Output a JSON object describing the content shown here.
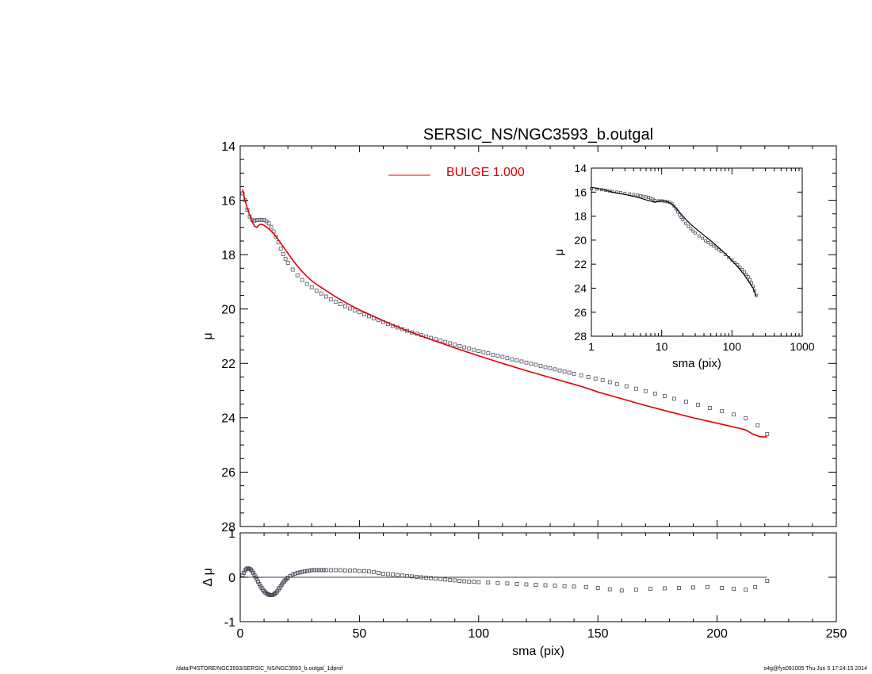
{
  "title": "SERSIC_NS/NGC3593_b.outgal",
  "legend": {
    "label": "BULGE  1.000",
    "color": "#e00000"
  },
  "footer": {
    "path": "/data/P4STORE/NGC3593/SERSIC_NS/NGC3593_b.outgal_1dprof",
    "stamp": "s4g@fys091005  Thu Jun  5 17:24:15 2014"
  },
  "chart_data": [
    {
      "id": "main",
      "type": "scatter",
      "title": "SERSIC_NS/NGC3593_b.outgal",
      "xlabel": "",
      "ylabel": "μ",
      "xlim": [
        0,
        250
      ],
      "ylim": [
        28,
        14
      ],
      "yticks": [
        14,
        16,
        18,
        20,
        22,
        24,
        26,
        28
      ],
      "series": [
        {
          "name": "",
          "kind": "points",
          "color": "#505060",
          "x": [
            1,
            2,
            3,
            4,
            5,
            6,
            7,
            8,
            9,
            10,
            11,
            12,
            13,
            14,
            15,
            16,
            17,
            18,
            19,
            20,
            22,
            24,
            26,
            28,
            30,
            32,
            34,
            36,
            38,
            40,
            42,
            44,
            46,
            48,
            50,
            52,
            54,
            56,
            58,
            60,
            62,
            64,
            66,
            68,
            70,
            72,
            74,
            76,
            78,
            80,
            82,
            84,
            86,
            88,
            90,
            92,
            94,
            96,
            98,
            100,
            102,
            104,
            106,
            108,
            110,
            112,
            114,
            116,
            118,
            120,
            122,
            124,
            126,
            128,
            130,
            132,
            134,
            136,
            138,
            140,
            143,
            146,
            149,
            152,
            155,
            158,
            162,
            166,
            170,
            174,
            178,
            182,
            187,
            192,
            197,
            202,
            207,
            212,
            217,
            221
          ],
          "y": [
            15.75,
            16.0,
            16.35,
            16.6,
            16.72,
            16.75,
            16.73,
            16.72,
            16.72,
            16.73,
            16.77,
            16.85,
            16.98,
            17.15,
            17.35,
            17.55,
            17.78,
            17.98,
            18.15,
            18.3,
            18.55,
            18.76,
            18.93,
            19.08,
            19.2,
            19.32,
            19.43,
            19.54,
            19.64,
            19.73,
            19.82,
            19.9,
            19.98,
            20.05,
            20.12,
            20.2,
            20.27,
            20.34,
            20.41,
            20.48,
            20.55,
            20.62,
            20.68,
            20.74,
            20.8,
            20.86,
            20.91,
            20.96,
            21.01,
            21.06,
            21.11,
            21.16,
            21.21,
            21.26,
            21.31,
            21.36,
            21.41,
            21.45,
            21.5,
            21.54,
            21.59,
            21.63,
            21.68,
            21.72,
            21.76,
            21.81,
            21.85,
            21.89,
            21.93,
            21.97,
            22.01,
            22.05,
            22.1,
            22.14,
            22.18,
            22.22,
            22.26,
            22.3,
            22.34,
            22.38,
            22.44,
            22.5,
            22.56,
            22.62,
            22.69,
            22.76,
            22.84,
            22.93,
            23.02,
            23.11,
            23.2,
            23.3,
            23.41,
            23.52,
            23.64,
            23.76,
            23.88,
            24.02,
            24.28,
            24.6
          ]
        },
        {
          "name": "BULGE  1.000",
          "kind": "line",
          "color": "#e00000",
          "x": [
            1,
            2,
            3,
            4,
            5,
            6,
            7,
            8,
            9,
            10,
            12,
            14,
            16,
            18,
            20,
            22,
            24,
            26,
            28,
            30,
            33,
            36,
            40,
            45,
            50,
            55,
            60,
            65,
            70,
            80,
            90,
            100,
            110,
            120,
            130,
            140,
            145,
            150,
            160,
            170,
            180,
            190,
            200,
            210,
            212,
            215,
            218,
            221
          ],
          "y": [
            15.6,
            16.0,
            16.3,
            16.55,
            16.78,
            16.95,
            17.0,
            16.9,
            16.88,
            16.92,
            17.05,
            17.22,
            17.45,
            17.7,
            17.95,
            18.2,
            18.42,
            18.62,
            18.8,
            18.96,
            19.15,
            19.32,
            19.55,
            19.8,
            20.03,
            20.23,
            20.43,
            20.62,
            20.8,
            21.12,
            21.43,
            21.72,
            22.0,
            22.27,
            22.52,
            22.77,
            22.9,
            23.05,
            23.3,
            23.55,
            23.78,
            24.0,
            24.2,
            24.4,
            24.45,
            24.6,
            24.7,
            24.7
          ]
        }
      ]
    },
    {
      "id": "residual",
      "type": "scatter",
      "xlabel": "sma (pix)",
      "ylabel": "Δ μ",
      "xlim": [
        0,
        250
      ],
      "ylim": [
        -1,
        1
      ],
      "xticks": [
        0,
        50,
        100,
        150,
        200,
        250
      ],
      "yticks": [
        -1,
        0,
        1
      ],
      "zero_line": true,
      "series": [
        {
          "name": "",
          "kind": "points",
          "color": "#404050",
          "x": [
            1,
            1.5,
            2,
            2.5,
            3,
            3.5,
            4,
            4.5,
            5,
            5.5,
            6,
            6.5,
            7,
            7.5,
            8,
            8.5,
            9,
            9.5,
            10,
            10.5,
            11,
            11.5,
            12,
            12.5,
            13,
            13.5,
            14,
            14.5,
            15,
            15.5,
            16,
            16.5,
            17,
            17.5,
            18,
            18.5,
            19,
            19.5,
            20,
            21,
            22,
            23,
            24,
            25,
            26,
            27,
            28,
            29,
            30,
            31,
            32,
            33,
            34,
            35,
            36,
            38,
            40,
            42,
            44,
            46,
            48,
            50,
            52,
            54,
            56,
            58,
            60,
            62,
            64,
            66,
            68,
            70,
            72,
            74,
            76,
            78,
            80,
            82,
            84,
            86,
            88,
            90,
            92,
            94,
            96,
            98,
            100,
            104,
            108,
            112,
            116,
            120,
            124,
            128,
            132,
            136,
            140,
            145,
            150,
            155,
            160,
            166,
            172,
            178,
            184,
            190,
            196,
            202,
            207,
            212,
            216,
            221
          ],
          "y": [
            0.05,
            0.1,
            0.15,
            0.18,
            0.2,
            0.2,
            0.19,
            0.17,
            0.14,
            0.1,
            0.05,
            0.0,
            -0.05,
            -0.1,
            -0.15,
            -0.2,
            -0.24,
            -0.28,
            -0.31,
            -0.34,
            -0.36,
            -0.38,
            -0.39,
            -0.4,
            -0.4,
            -0.4,
            -0.39,
            -0.37,
            -0.35,
            -0.32,
            -0.28,
            -0.24,
            -0.2,
            -0.16,
            -0.12,
            -0.09,
            -0.06,
            -0.03,
            -0.01,
            0.03,
            0.06,
            0.08,
            0.1,
            0.11,
            0.12,
            0.13,
            0.14,
            0.15,
            0.16,
            0.16,
            0.16,
            0.16,
            0.16,
            0.16,
            0.16,
            0.16,
            0.16,
            0.16,
            0.15,
            0.15,
            0.15,
            0.14,
            0.14,
            0.13,
            0.12,
            0.1,
            0.08,
            0.07,
            0.06,
            0.05,
            0.04,
            0.03,
            0.02,
            0.01,
            0.0,
            -0.01,
            -0.02,
            -0.03,
            -0.04,
            -0.05,
            -0.06,
            -0.07,
            -0.08,
            -0.09,
            -0.1,
            -0.1,
            -0.11,
            -0.12,
            -0.13,
            -0.14,
            -0.15,
            -0.16,
            -0.17,
            -0.18,
            -0.19,
            -0.2,
            -0.21,
            -0.22,
            -0.24,
            -0.27,
            -0.3,
            -0.28,
            -0.26,
            -0.25,
            -0.24,
            -0.23,
            -0.22,
            -0.24,
            -0.26,
            -0.28,
            -0.22,
            -0.08
          ]
        }
      ]
    },
    {
      "id": "inset",
      "type": "scatter",
      "xlabel": "sma (pix)",
      "ylabel": "μ",
      "xscale": "log",
      "xlim": [
        1,
        1000
      ],
      "ylim": [
        28,
        14
      ],
      "xticks": [
        1,
        10,
        100,
        1000
      ],
      "yticks": [
        14,
        16,
        18,
        20,
        22,
        24,
        26,
        28
      ],
      "series": [
        {
          "name": "",
          "kind": "points",
          "color": "#505060",
          "x": [
            1,
            1.2,
            1.4,
            1.6,
            1.8,
            2,
            2.3,
            2.6,
            3,
            3.5,
            4,
            4.5,
            5,
            5.5,
            6,
            6.5,
            7,
            7.5,
            8,
            9,
            10,
            11,
            12,
            13,
            14,
            15,
            16,
            17,
            18,
            19,
            20,
            22,
            24,
            26,
            28,
            30,
            34,
            38,
            42,
            46,
            50,
            55,
            60,
            65,
            70,
            80,
            90,
            100,
            110,
            120,
            130,
            140,
            150,
            160,
            170,
            180,
            190,
            200,
            210,
            221
          ],
          "y": [
            15.72,
            15.75,
            15.8,
            15.85,
            15.9,
            15.95,
            16.0,
            16.05,
            16.1,
            16.15,
            16.2,
            16.25,
            16.3,
            16.35,
            16.4,
            16.45,
            16.52,
            16.6,
            16.7,
            16.73,
            16.73,
            16.76,
            16.8,
            16.85,
            16.95,
            17.15,
            17.4,
            17.65,
            17.9,
            18.1,
            18.3,
            18.6,
            18.85,
            19.05,
            19.25,
            19.4,
            19.65,
            19.85,
            20.05,
            20.2,
            20.35,
            20.5,
            20.65,
            20.8,
            20.95,
            21.2,
            21.45,
            21.65,
            21.85,
            22.05,
            22.25,
            22.45,
            22.65,
            22.85,
            23.05,
            23.3,
            23.55,
            23.85,
            24.2,
            24.6
          ]
        },
        {
          "name": "",
          "kind": "line",
          "color": "#000000",
          "x": [
            1,
            1.5,
            2,
            3,
            4,
            5,
            6,
            7,
            8,
            9,
            10,
            12,
            14,
            17,
            20,
            25,
            30,
            40,
            50,
            60,
            80,
            100,
            120,
            150,
            180,
            200,
            221
          ],
          "y": [
            15.6,
            15.8,
            16.0,
            16.2,
            16.35,
            16.5,
            16.65,
            16.75,
            16.85,
            16.75,
            16.72,
            16.8,
            17.0,
            17.5,
            18.0,
            18.6,
            19.0,
            19.6,
            20.05,
            20.45,
            21.1,
            21.7,
            22.2,
            22.9,
            23.6,
            24.0,
            24.65
          ]
        }
      ]
    }
  ]
}
